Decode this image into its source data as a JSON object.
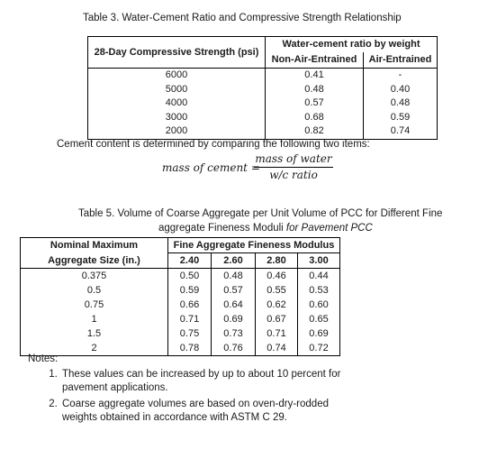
{
  "table3": {
    "caption": "Table 3. Water-Cement Ratio and Compressive Strength Relationship",
    "col1_header": "28-Day Compressive Strength (psi)",
    "group_header": "Water-cement ratio by weight",
    "sub_headers": [
      "Non-Air-Entrained",
      "Air-Entrained"
    ],
    "rows": [
      {
        "strength": "6000",
        "non_air": "0.41",
        "air": "-"
      },
      {
        "strength": "5000",
        "non_air": "0.48",
        "air": "0.40"
      },
      {
        "strength": "4000",
        "non_air": "0.57",
        "air": "0.48"
      },
      {
        "strength": "3000",
        "non_air": "0.68",
        "air": "0.59"
      },
      {
        "strength": "2000",
        "non_air": "0.82",
        "air": "0.74"
      }
    ]
  },
  "cement_note": "Cement content is determined by comparing the following two items:",
  "formula": {
    "lhs": "mass of cement =",
    "numerator": "mass of water",
    "denominator": "w/c ratio"
  },
  "table5": {
    "caption_line1": "Table 5. Volume of Coarse Aggregate per Unit Volume of PCC for Different Fine",
    "caption_line2": "aggregate Fineness Moduli ",
    "caption_line2_italic": "for Pavement PCC",
    "col1_header_line1": "Nominal Maximum",
    "col1_header_line2": "Aggregate Size (in.)",
    "group_header": "Fine Aggregate Fineness Modulus",
    "sub_headers": [
      "2.40",
      "2.60",
      "2.80",
      "3.00"
    ],
    "rows": [
      {
        "size": "0.375",
        "values": [
          "0.50",
          "0.48",
          "0.46",
          "0.44"
        ]
      },
      {
        "size": "0.5",
        "values": [
          "0.59",
          "0.57",
          "0.55",
          "0.53"
        ]
      },
      {
        "size": "0.75",
        "values": [
          "0.66",
          "0.64",
          "0.62",
          "0.60"
        ]
      },
      {
        "size": "1",
        "values": [
          "0.71",
          "0.69",
          "0.67",
          "0.65"
        ]
      },
      {
        "size": "1.5",
        "values": [
          "0.75",
          "0.73",
          "0.71",
          "0.69"
        ]
      },
      {
        "size": "2",
        "values": [
          "0.78",
          "0.76",
          "0.74",
          "0.72"
        ]
      }
    ]
  },
  "notes": {
    "title": "Notes:",
    "items": [
      "These values can be increased by up to about 10 percent for pavement applications.",
      "Coarse aggregate volumes are based on oven-dry-rodded weights obtained in accordance with ASTM C 29."
    ]
  }
}
